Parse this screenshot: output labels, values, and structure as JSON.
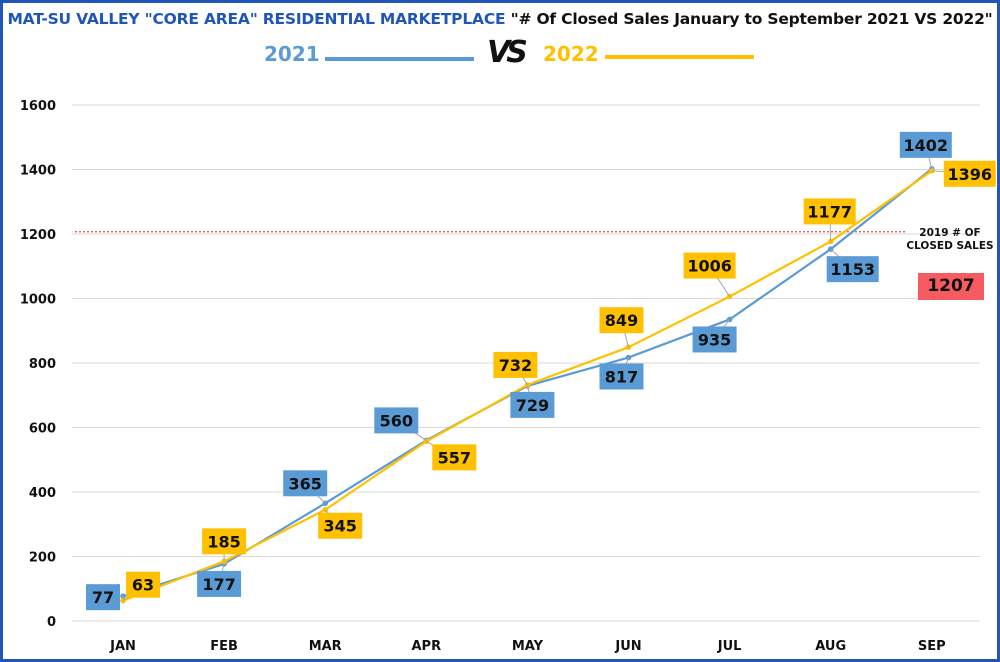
{
  "title": {
    "part1": "MAT-SU VALLEY \"CORE AREA\" RESIDENTIAL MARKETPLACE",
    "part2": " \"# Of Closed Sales January  to  September  2021 VS 2022\""
  },
  "legend": {
    "series1_label": "2021",
    "vs_label": "VS",
    "series2_label": "2022"
  },
  "colors": {
    "series_2021": "#5b9bd5",
    "series_2022": "#ffc000",
    "reference": "#f55b61",
    "frame": "#1f56b8",
    "grid": "#d9d9d9"
  },
  "chart_data": {
    "type": "line",
    "title": "MAT-SU VALLEY \"CORE AREA\" RESIDENTIAL MARKETPLACE \"# Of Closed Sales January to September 2021 VS 2022\"",
    "xlabel": "",
    "ylabel": "",
    "categories": [
      "JAN",
      "FEB",
      "MAR",
      "APR",
      "MAY",
      "JUN",
      "JUL",
      "AUG",
      "SEP"
    ],
    "series": [
      {
        "name": "2021",
        "values": [
          77,
          177,
          365,
          560,
          729,
          817,
          935,
          1153,
          1402
        ]
      },
      {
        "name": "2022",
        "values": [
          63,
          185,
          345,
          557,
          732,
          849,
          1006,
          1177,
          1396
        ]
      }
    ],
    "ylim": [
      0,
      1600
    ],
    "yticks": [
      0,
      200,
      400,
      600,
      800,
      1000,
      1200,
      1400,
      1600
    ],
    "grid": true,
    "legend_position": "top-center",
    "reference_line": {
      "label": "2019 # OF CLOSED SALES",
      "value": 1207,
      "style": "dotted"
    }
  }
}
